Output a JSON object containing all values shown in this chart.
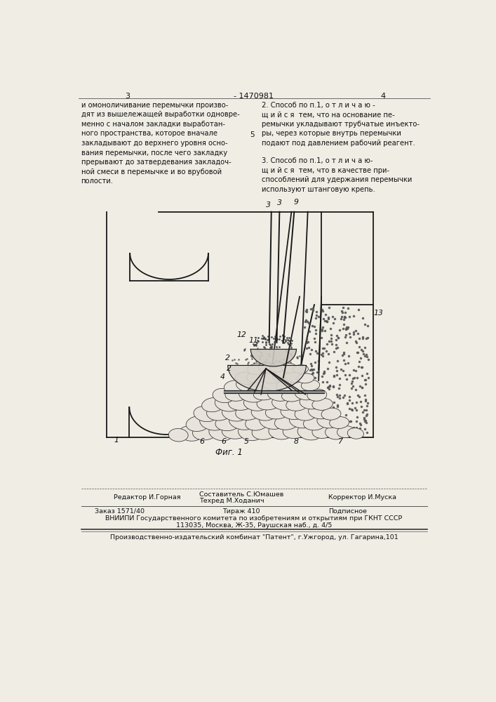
{
  "page_color": "#f0ede5",
  "title_number": "1470981",
  "page_left": "3",
  "page_right": "4",
  "text_left": "и омоноличивание перемычки произво-\nдят из вышележащей выработки одновре-\nменно с началом закладки выработан-\nного пространства, которое вначале\nзакладывают до верхнего уровня осно-\nвания перемычки, после чего закладку\nпрерывают до затвердевания закладоч-\nной смеси в перемычке и во врубовой\nполости.",
  "text_right_2": "2. Способ по п.1, о т л и ч а ю -\nщ и й с я  тем, что на основание пе-\nремычки укладывают трубчатые инъекто-\nры, через которые внутрь перемычки\nподают под давлением рабочий реагент.",
  "text_right_3": "3. Способ по п.1, о т л и ч а ю-\nщ и й с я  тем, что в качестве при-\nспособлений для удержания перемычки\nиспользуют штанговую крепь.",
  "number_5": "5",
  "fig_label": "Фиг. 1",
  "footer_editor": "Редактор И.Горная",
  "footer_compiler": "Составитель С.Юмашев",
  "footer_techred": "Техред М.Ходанич",
  "footer_corrector": "Корректор И.Муска",
  "footer_order": "Заказ 1571/40",
  "footer_print": "Тираж 410",
  "footer_subscription": "Подписное",
  "footer_vniiipi": "ВНИИПИ Государственного комитета по изобретениям и открытиям при ГКНТ СССР",
  "footer_address": "113035, Москва, Ж-35, Раушская наб., д. 4/5",
  "footer_patent": "Производственно-издательский комбинат \"Патент\", г.Ужгород, ул. Гагарина,101",
  "col_line": "#1a1a1a",
  "lw_main": 1.3,
  "lw_thin": 0.8
}
